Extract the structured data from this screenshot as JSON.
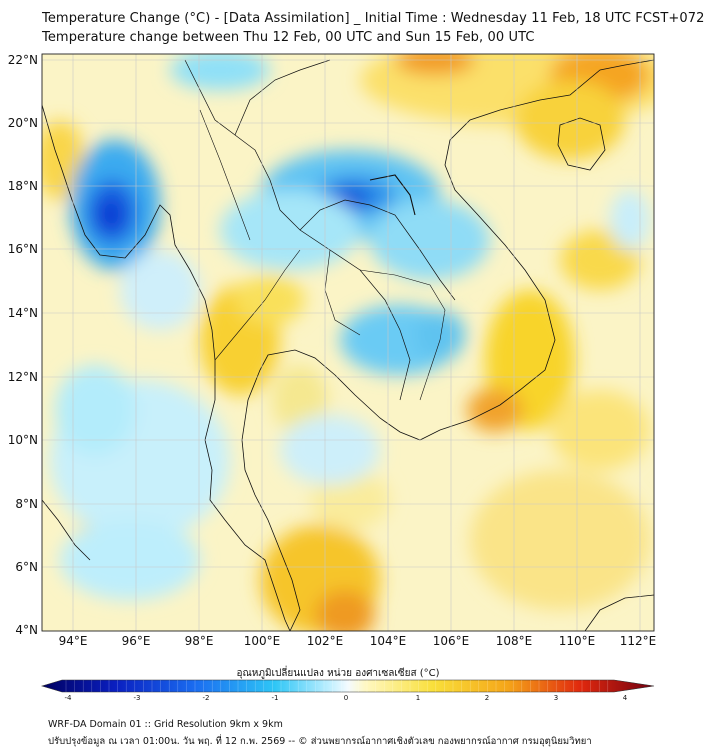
{
  "title": {
    "line1": "Temperature Change (°C) - [Data Assimilation] _ Initial Time : Wednesday 11 Feb, 18 UTC FCST+072",
    "line2": "Temperature change between Thu 12 Feb, 00 UTC and Sun 15 Feb, 00 UTC"
  },
  "map": {
    "lon_labels": [
      "94°E",
      "96°E",
      "98°E",
      "100°E",
      "102°E",
      "104°E",
      "106°E",
      "108°E",
      "110°E",
      "112°E"
    ],
    "lat_labels": [
      "22°N",
      "20°N",
      "18°N",
      "16°N",
      "14°N",
      "12°N",
      "10°N",
      "8°N",
      "6°N",
      "4°N"
    ],
    "lon_range": [
      93,
      112.3
    ],
    "lat_range": [
      4,
      22.2
    ]
  },
  "colorbar": {
    "label": "อุณหภูมิเปลี่ยนแปลง หน่วย องศาเซลเซียส (°C)",
    "ticks": [
      "-4",
      "-3",
      "-2",
      "-1",
      "0",
      "1",
      "2",
      "3",
      "4"
    ],
    "range": [
      -4,
      4
    ]
  },
  "footer": {
    "line1": "WRF-DA Domain 01 :: Grid Resolution 9km x 9km",
    "line2": "ปรับปรุงข้อมูล ณ เวลา 01:00น. วัน พฤ. ที่ 12 ก.พ. 2569 -- © ส่วนพยากรณ์อากาศเชิงตัวเลข กองพยากรณ์อากาศ กรมอุตุนิยมวิทยา"
  },
  "colors": {
    "cold_dark": "#0a2fd6",
    "cold_mid": "#1e9bf0",
    "cold_light": "#8fe0f8",
    "neutral": "#eef7fb",
    "warm_light": "#fff3a0",
    "warm_mid": "#f8d22c",
    "warm_dark": "#f08a10",
    "hot": "#e02010"
  }
}
